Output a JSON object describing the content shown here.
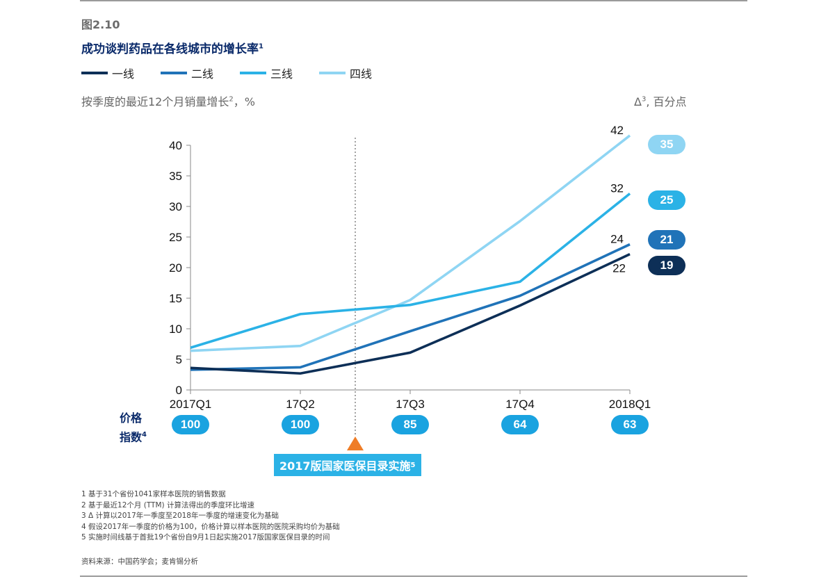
{
  "figure_number": "图2.10",
  "title": "成功谈判药品在各线城市的增长率",
  "title_sup": "1",
  "legend": [
    {
      "label": "一线",
      "color": "#0d2f57"
    },
    {
      "label": "二线",
      "color": "#2073b8"
    },
    {
      "label": "三线",
      "color": "#2bb2e6"
    },
    {
      "label": "四线",
      "color": "#8fd5f3"
    }
  ],
  "subtitle": "按季度的最近12个月销量增长",
  "subtitle_sup": "2",
  "subtitle_unit": "，%",
  "right_unit_prefix": "Δ",
  "right_unit_sup": "3",
  "right_unit_suffix": ", 百分点",
  "chart_data": {
    "type": "line",
    "categories": [
      "2017Q1",
      "17Q2",
      "17Q3",
      "17Q4",
      "2018Q1"
    ],
    "ylim": [
      0,
      40
    ],
    "y_ticks": [
      0,
      5,
      10,
      15,
      20,
      25,
      30,
      35,
      40
    ],
    "series": [
      {
        "name": "一线",
        "color": "#0d2f57",
        "values": [
          3.6,
          2.7,
          6.1,
          13.8,
          22.2
        ],
        "end_label": "22",
        "delta": "19"
      },
      {
        "name": "二线",
        "color": "#2073b8",
        "values": [
          3.3,
          3.7,
          9.6,
          15.4,
          23.8
        ],
        "end_label": "24",
        "delta": "21"
      },
      {
        "name": "三线",
        "color": "#2bb2e6",
        "values": [
          6.9,
          12.4,
          13.9,
          17.7,
          32.1
        ],
        "end_label": "32",
        "delta": "25"
      },
      {
        "name": "四线",
        "color": "#8fd5f3",
        "values": [
          6.4,
          7.2,
          14.7,
          27.6,
          41.6
        ],
        "end_label": "42",
        "delta": "35"
      }
    ],
    "price_index_label_line1": "价格",
    "price_index_label_line2": "指数",
    "price_index_label_sup": "4",
    "price_index": [
      "100",
      "100",
      "85",
      "64",
      "63"
    ],
    "price_index_color": "#1aa3e0",
    "event_marker_color": "#ef7d27",
    "event_label": "2017版国家医保目录实施",
    "event_label_sup": "5"
  },
  "footnotes": [
    "1 基于31个省份1041家样本医院的销售数据",
    "2 基于最近12个月 (TTM) 计算法得出的季度环比增速",
    "3 Δ 计算以2017年一季度至2018年一季度的增速变化为基础",
    "4 假设2017年一季度的价格为100，价格计算以样本医院的医院采购均价为基础",
    "5 实施时间线基于首批19个省份自9月1日起实施2017版国家医保目录的时间"
  ],
  "source": "资料来源：中国药学会；麦肯锡分析"
}
